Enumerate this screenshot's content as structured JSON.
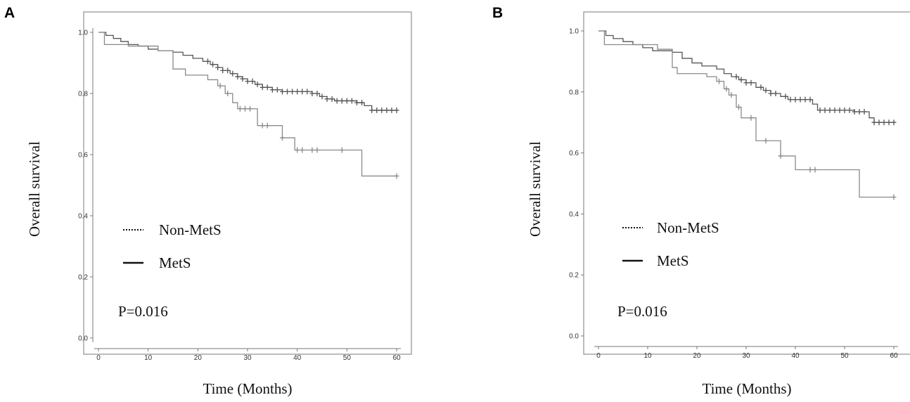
{
  "chart_data": [
    {
      "panel": "A",
      "type": "line",
      "subtype": "kaplan-meier",
      "xlabel": "Time (Months)",
      "ylabel": "Overall survival",
      "xlim": [
        0,
        60
      ],
      "ylim": [
        0,
        1
      ],
      "xticks": [
        "0",
        "10",
        "20",
        "30",
        "40",
        "50",
        "60"
      ],
      "yticks": [
        "0.0",
        "0.2",
        "0.4",
        "0.6",
        "0.8",
        "1.0"
      ],
      "annotation": "P=0.016",
      "legend": [
        {
          "label": "Non-MetS",
          "style": "dotted"
        },
        {
          "label": "MetS",
          "style": "solid"
        }
      ],
      "series": [
        {
          "name": "Non-MetS",
          "color": "#555555",
          "steps": [
            [
              0,
              1.0
            ],
            [
              1.5,
              0.99
            ],
            [
              3,
              0.98
            ],
            [
              4.5,
              0.97
            ],
            [
              6,
              0.96
            ],
            [
              8,
              0.955
            ],
            [
              10,
              0.945
            ],
            [
              12,
              0.94
            ],
            [
              15,
              0.935
            ],
            [
              17,
              0.925
            ],
            [
              19,
              0.915
            ],
            [
              21,
              0.905
            ],
            [
              22.5,
              0.895
            ],
            [
              24,
              0.885
            ],
            [
              25,
              0.875
            ],
            [
              26.5,
              0.865
            ],
            [
              28,
              0.855
            ],
            [
              29,
              0.848
            ],
            [
              30,
              0.84
            ],
            [
              31.5,
              0.83
            ],
            [
              33,
              0.82
            ],
            [
              35,
              0.812
            ],
            [
              37,
              0.806
            ],
            [
              40,
              0.806
            ],
            [
              43,
              0.8
            ],
            [
              44.5,
              0.79
            ],
            [
              46,
              0.782
            ],
            [
              47.5,
              0.776
            ],
            [
              52,
              0.77
            ],
            [
              53.5,
              0.76
            ],
            [
              55,
              0.745
            ],
            [
              60,
              0.745
            ]
          ],
          "censors": [
            22,
            23,
            24,
            25,
            26,
            27,
            28,
            29,
            30,
            31,
            32,
            33,
            34,
            35,
            36,
            37,
            38,
            39,
            40,
            41,
            42,
            43,
            44,
            45,
            46,
            47,
            48,
            49,
            50,
            51,
            52,
            53,
            55,
            56,
            57,
            58,
            59,
            60
          ]
        },
        {
          "name": "MetS",
          "color": "#8a8a8a",
          "steps": [
            [
              0,
              1.0
            ],
            [
              1.2,
              0.96
            ],
            [
              6,
              0.955
            ],
            [
              12,
              0.94
            ],
            [
              15,
              0.88
            ],
            [
              17.5,
              0.86
            ],
            [
              22,
              0.845
            ],
            [
              24,
              0.825
            ],
            [
              25.5,
              0.8
            ],
            [
              27,
              0.77
            ],
            [
              28,
              0.75
            ],
            [
              32,
              0.695
            ],
            [
              37,
              0.655
            ],
            [
              39.5,
              0.615
            ],
            [
              53,
              0.53
            ],
            [
              60,
              0.53
            ]
          ],
          "censors": [
            24.5,
            26,
            28.5,
            29.5,
            30.5,
            33,
            34,
            37,
            40,
            41,
            43,
            44,
            49,
            60
          ]
        }
      ]
    },
    {
      "panel": "B",
      "type": "line",
      "subtype": "kaplan-meier",
      "xlabel": "Time (Months)",
      "ylabel": "Overall survival",
      "xlim": [
        0,
        60
      ],
      "ylim": [
        0,
        1
      ],
      "xticks": [
        "0",
        "10",
        "20",
        "30",
        "40",
        "50",
        "60"
      ],
      "yticks": [
        "0.0",
        "0.2",
        "0.4",
        "0.6",
        "0.8",
        "1.0"
      ],
      "annotation": "P=0.016",
      "legend": [
        {
          "label": "Non-MetS",
          "style": "dotted"
        },
        {
          "label": "MetS",
          "style": "solid"
        }
      ],
      "series": [
        {
          "name": "Non-MetS",
          "color": "#555555",
          "steps": [
            [
              0,
              1.0
            ],
            [
              1.5,
              0.985
            ],
            [
              3,
              0.975
            ],
            [
              5,
              0.965
            ],
            [
              7,
              0.955
            ],
            [
              9,
              0.945
            ],
            [
              11,
              0.935
            ],
            [
              15,
              0.93
            ],
            [
              17,
              0.91
            ],
            [
              19,
              0.895
            ],
            [
              21,
              0.885
            ],
            [
              24,
              0.875
            ],
            [
              25.5,
              0.86
            ],
            [
              27,
              0.85
            ],
            [
              28.5,
              0.84
            ],
            [
              30,
              0.83
            ],
            [
              32,
              0.815
            ],
            [
              33.5,
              0.805
            ],
            [
              35,
              0.795
            ],
            [
              37,
              0.785
            ],
            [
              38.5,
              0.775
            ],
            [
              43.5,
              0.76
            ],
            [
              44.5,
              0.74
            ],
            [
              52,
              0.735
            ],
            [
              55,
              0.715
            ],
            [
              56,
              0.7
            ],
            [
              60,
              0.7
            ]
          ],
          "censors": [
            28,
            29,
            30,
            31,
            33,
            34,
            35,
            36,
            38,
            39,
            40,
            41,
            42,
            43,
            45,
            46,
            47,
            48,
            49,
            50,
            51,
            52,
            53,
            54,
            56,
            57,
            58,
            59,
            60
          ]
        },
        {
          "name": "MetS",
          "color": "#8a8a8a",
          "steps": [
            [
              0,
              1.0
            ],
            [
              1.2,
              0.955
            ],
            [
              12,
              0.94
            ],
            [
              15,
              0.88
            ],
            [
              16,
              0.86
            ],
            [
              22,
              0.85
            ],
            [
              24,
              0.835
            ],
            [
              25.5,
              0.81
            ],
            [
              26.5,
              0.79
            ],
            [
              28,
              0.75
            ],
            [
              29,
              0.715
            ],
            [
              32,
              0.64
            ],
            [
              37,
              0.59
            ],
            [
              40,
              0.545
            ],
            [
              53,
              0.455
            ],
            [
              60,
              0.455
            ]
          ],
          "censors": [
            24.5,
            26,
            27,
            28.5,
            31,
            34,
            37,
            43,
            44,
            60
          ]
        }
      ]
    }
  ]
}
